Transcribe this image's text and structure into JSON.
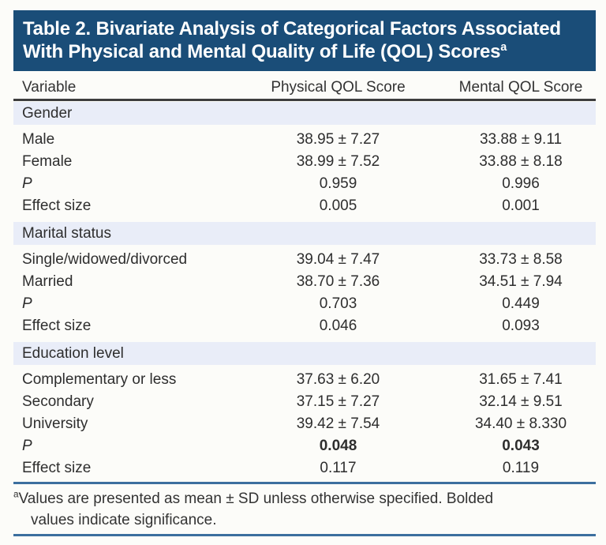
{
  "header": {
    "title_line1": "Table 2. Bivariate Analysis of Categorical Factors Associated",
    "title_line2": "With Physical and Mental Quality of Life (QOL) Scores",
    "title_superscript": "a"
  },
  "columns": [
    "Variable",
    "Physical QOL Score",
    "Mental QOL Score"
  ],
  "table": {
    "sections": [
      {
        "header": "Gender",
        "rows": [
          {
            "label": "Male",
            "physical": "38.95 ± 7.27",
            "mental": "33.88 ± 9.11"
          },
          {
            "label": "Female",
            "physical": "38.99 ± 7.52",
            "mental": "33.88 ± 8.18"
          },
          {
            "label": "P",
            "physical": "0.959",
            "mental": "0.996"
          },
          {
            "label": "Effect size",
            "physical": "0.005",
            "mental": "0.001"
          }
        ]
      },
      {
        "header": "Marital status",
        "rows": [
          {
            "label": "Single/widowed/divorced",
            "physical": "39.04 ± 7.47",
            "mental": "33.73 ± 8.58"
          },
          {
            "label": "Married",
            "physical": "38.70 ± 7.36",
            "mental": "34.51 ± 7.94"
          },
          {
            "label": "P",
            "physical": "0.703",
            "mental": "0.449"
          },
          {
            "label": "Effect size",
            "physical": "0.046",
            "mental": "0.093"
          }
        ]
      },
      {
        "header": "Education level",
        "rows": [
          {
            "label": "Complementary or less",
            "physical": "37.63 ± 6.20",
            "mental": "31.65 ± 7.41"
          },
          {
            "label": "Secondary",
            "physical": "37.15 ± 7.27",
            "mental": "32.14 ± 9.51"
          },
          {
            "label": "University",
            "physical": "39.42 ± 7.54",
            "mental": "34.40 ± 8.330"
          },
          {
            "label": "P",
            "physical": "0.048",
            "mental": "0.043"
          },
          {
            "label": "Effect size",
            "physical": "0.117",
            "mental": "0.119"
          }
        ]
      }
    ]
  },
  "footnote": {
    "marker": "a",
    "line1": "Values are presented as mean ± SD unless otherwise specified. Bolded",
    "line2": "values indicate significance."
  },
  "colors": {
    "header_bg": "#1a4d78",
    "section_band_bg": "#e9edf8",
    "rule_dark": "#3e3e3e",
    "rule_blue": "#3c6f9f"
  }
}
